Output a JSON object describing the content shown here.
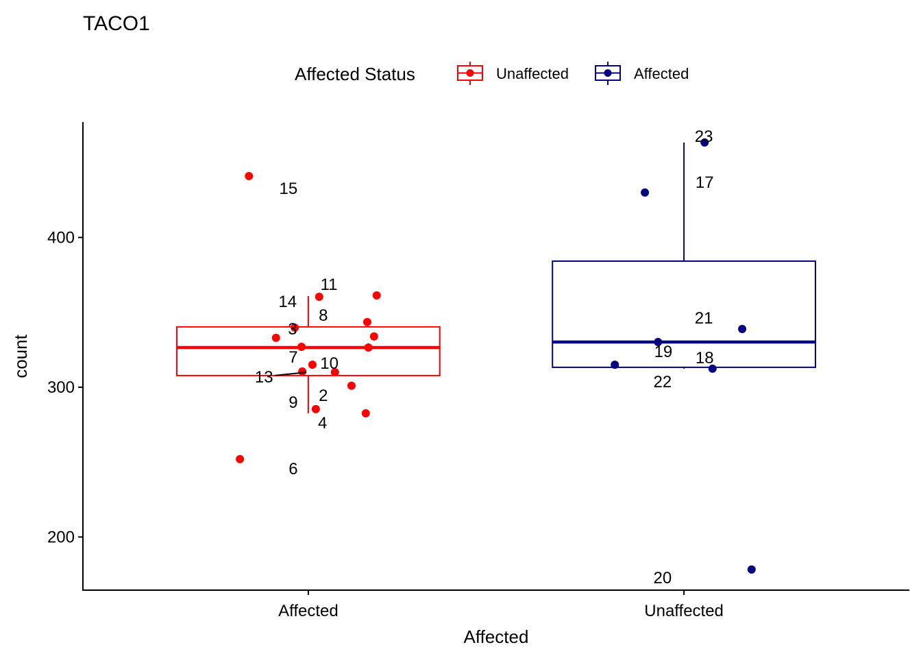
{
  "chart_data": {
    "type": "boxplot",
    "title": "TACO1",
    "xlabel": "Affected",
    "ylabel": "count",
    "categories": [
      "Affected",
      "Unaffected"
    ],
    "xlim": [
      0.4,
      2.6
    ],
    "ylim": [
      164.5,
      477.1
    ],
    "yticks": [
      200,
      300,
      400
    ],
    "grid": false,
    "legend": {
      "title": "Affected Status",
      "placement": "top",
      "entries": [
        {
          "label": "Unaffected",
          "color": "#FF0000"
        },
        {
          "label": "Affected",
          "color": "#000080"
        }
      ]
    },
    "groups": [
      {
        "category": "Affected",
        "color": "#FF0000",
        "box": {
          "lower_whisker": 282.6,
          "q1": 307.8,
          "median": 326.5,
          "q3": 340.3,
          "upper_whisker": 360.9
        },
        "points": [
          {
            "x": 0.842,
            "y": 441.0
          },
          {
            "x": 1.029,
            "y": 360.4
          },
          {
            "x": 1.182,
            "y": 361.3
          },
          {
            "x": 1.157,
            "y": 343.5
          },
          {
            "x": 0.964,
            "y": 339.8
          },
          {
            "x": 0.914,
            "y": 333.0
          },
          {
            "x": 1.175,
            "y": 333.9
          },
          {
            "x": 0.982,
            "y": 327.0
          },
          {
            "x": 1.16,
            "y": 326.5
          },
          {
            "x": 1.011,
            "y": 315.0
          },
          {
            "x": 0.984,
            "y": 310.5
          },
          {
            "x": 1.071,
            "y": 310.0
          },
          {
            "x": 1.115,
            "y": 301.0
          },
          {
            "x": 1.02,
            "y": 285.4
          },
          {
            "x": 1.153,
            "y": 282.6
          },
          {
            "x": 0.818,
            "y": 252.0
          }
        ],
        "labels": [
          {
            "text": "15",
            "x": 0.947,
            "y": 432.7
          },
          {
            "text": "11",
            "x": 1.055,
            "y": 368.6
          },
          {
            "text": "14",
            "x": 0.945,
            "y": 357.2
          },
          {
            "text": "8",
            "x": 1.04,
            "y": 348.0
          },
          {
            "text": "3",
            "x": 0.958,
            "y": 338.9
          },
          {
            "text": "7",
            "x": 0.96,
            "y": 320.1
          },
          {
            "text": "10",
            "x": 1.056,
            "y": 316.0
          },
          {
            "text": "13",
            "x": 0.882,
            "y": 306.9,
            "segment_to": {
              "x": 0.995,
              "y": 310.0
            }
          },
          {
            "text": "9",
            "x": 0.96,
            "y": 290.0
          },
          {
            "text": "2",
            "x": 1.04,
            "y": 294.5
          },
          {
            "text": "4",
            "x": 1.038,
            "y": 276.2
          },
          {
            "text": "6",
            "x": 0.96,
            "y": 245.5
          }
        ]
      },
      {
        "category": "Unaffected",
        "color": "#000080",
        "box": {
          "lower_whisker": 312.4,
          "q1": 313.3,
          "median": 330.2,
          "q3": 384.2,
          "upper_whisker": 463.4
        },
        "points": [
          {
            "x": 2.055,
            "y": 463.4
          },
          {
            "x": 1.896,
            "y": 430.0
          },
          {
            "x": 2.155,
            "y": 338.9
          },
          {
            "x": 1.931,
            "y": 330.2
          },
          {
            "x": 1.816,
            "y": 315.0
          },
          {
            "x": 2.076,
            "y": 312.4
          },
          {
            "x": 2.18,
            "y": 178.3
          }
        ],
        "labels": [
          {
            "text": "23",
            "x": 2.053,
            "y": 467.5
          },
          {
            "text": "17",
            "x": 2.055,
            "y": 436.8
          },
          {
            "text": "21",
            "x": 2.053,
            "y": 346.2
          },
          {
            "text": "19",
            "x": 1.945,
            "y": 323.8
          },
          {
            "text": "18",
            "x": 2.055,
            "y": 319.7
          },
          {
            "text": "22",
            "x": 1.943,
            "y": 303.7
          },
          {
            "text": "20",
            "x": 1.943,
            "y": 172.8
          }
        ]
      }
    ]
  }
}
